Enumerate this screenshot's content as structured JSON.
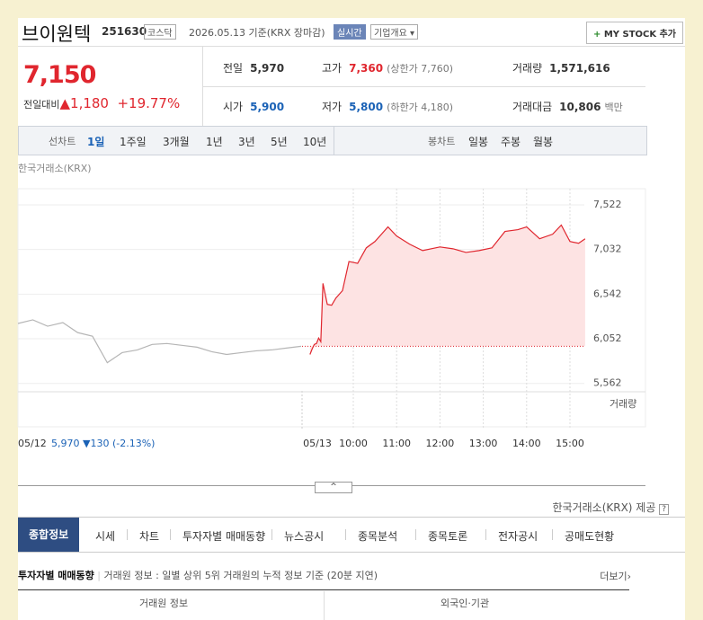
{
  "header": {
    "name": "브이원텍",
    "code": "251630",
    "market": "코스닥",
    "date": "2026.05.13 기준(KRX 장마감)",
    "realtime": "실시간",
    "company": "기업개요 ▾",
    "mystock": "MY STOCK 추가"
  },
  "price": {
    "current": "7,150",
    "change_label": "전일대비",
    "change": "▲1,180",
    "rate": "+19.77%"
  },
  "summary": {
    "rows": [
      [
        {
          "label": "전일",
          "value": "5,970"
        },
        {
          "label": "고가",
          "value": "7,360",
          "note": "(상한가 7,760)"
        },
        {
          "label": "거래량",
          "value": "1,571,616"
        }
      ],
      [
        {
          "label": "시가",
          "value": "5,900"
        },
        {
          "label": "저가",
          "value": "5,800",
          "note": "(하한가 4,180)"
        },
        {
          "label": "거래대금",
          "value": "10,806",
          "note": "백만"
        }
      ]
    ]
  },
  "chart_tabs": {
    "line_label": "선차트",
    "line": [
      "1일",
      "1주일",
      "3개월",
      "1년",
      "3년",
      "5년",
      "10년"
    ],
    "candle_label": "봉차트",
    "candle": [
      "일봉",
      "주봉",
      "월봉"
    ]
  },
  "chart": {
    "source": "한국거래소(KRX)",
    "ylim": [
      5510,
      7650
    ],
    "yticks": [
      {
        "value": 7522,
        "label": "7,522"
      },
      {
        "value": 7032,
        "label": "7,032"
      },
      {
        "value": 6542,
        "label": "6,542"
      },
      {
        "value": 6052,
        "label": "6,052"
      },
      {
        "value": 5562,
        "label": "5,562"
      }
    ],
    "xticks": [
      {
        "value": 10,
        "label": "10:00"
      },
      {
        "value": 11,
        "label": "11:00"
      },
      {
        "value": 12,
        "label": "12:00"
      },
      {
        "value": 13,
        "label": "13:00"
      },
      {
        "value": 14,
        "label": "14:00"
      },
      {
        "value": 15,
        "label": "15:00"
      }
    ],
    "prev_date": "05/12",
    "prev_info": "5,970 ▼130 (-2.13%)",
    "date": "05/13",
    "volume_label": "거래량",
    "baseline": 5970,
    "previous": {
      "color": "#b5b5b5",
      "x": [
        9,
        9.34,
        9.68,
        10.03,
        10.37,
        10.71,
        11.05,
        11.39,
        11.74,
        12.08,
        12.42,
        12.76,
        13.11,
        13.45,
        13.79,
        14.13,
        14.47,
        14.82,
        15.16,
        15.5
      ],
      "values": [
        6220,
        6260,
        6190,
        6230,
        6120,
        6080,
        5790,
        5900,
        5930,
        5990,
        6000,
        5980,
        5960,
        5910,
        5880,
        5900,
        5920,
        5930,
        5950,
        5970
      ]
    },
    "today": {
      "color": "#e0262e",
      "fill": "#fde3e3",
      "x": [
        9.0,
        9.05,
        9.1,
        9.15,
        9.2,
        9.25,
        9.3,
        9.4,
        9.5,
        9.6,
        9.75,
        9.9,
        10.1,
        10.3,
        10.5,
        10.8,
        11.0,
        11.3,
        11.6,
        12.0,
        12.3,
        12.6,
        12.9,
        13.2,
        13.5,
        13.8,
        14.0,
        14.3,
        14.6,
        14.8,
        15.0,
        15.2,
        15.35
      ],
      "values": [
        5880,
        5940,
        5990,
        6000,
        6060,
        6020,
        6660,
        6430,
        6420,
        6500,
        6580,
        6900,
        6880,
        7050,
        7120,
        7280,
        7180,
        7090,
        7020,
        7060,
        7040,
        7000,
        7020,
        7050,
        7230,
        7250,
        7280,
        7150,
        7200,
        7300,
        7120,
        7100,
        7150
      ]
    }
  },
  "footer": {
    "source": "한국거래소(KRX) 제공"
  },
  "tabs": [
    "종합정보",
    "시세",
    "차트",
    "투자자별 매매동향",
    "뉴스공시",
    "종목분석",
    "종목토론",
    "전자공시",
    "공매도현황"
  ],
  "section": {
    "title": "투자자별 매매동향",
    "desc": "거래원 정보 : 일별 상위 5위 거래원의 누적 정보 기준 (20분 지연)",
    "more": "더보기›",
    "columns": [
      "거래원 정보",
      "외국인·기관"
    ]
  }
}
